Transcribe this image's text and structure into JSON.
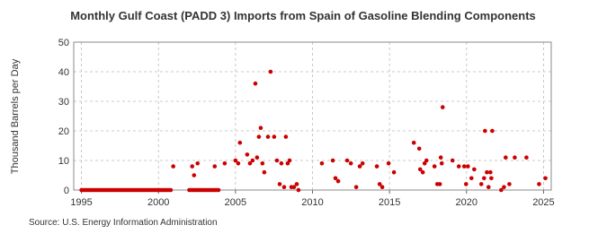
{
  "chart_data": {
    "type": "scatter",
    "title": "Monthly Gulf Coast (PADD 3) Imports from Spain of Gasoline Blending Components",
    "y_label": "Thousand Barrels per Day",
    "source": "Source: U.S. Energy Information Administration",
    "color": "#cc0000",
    "grid": true,
    "xlim": [
      1994.5,
      2025.5
    ],
    "xticks": [
      1995,
      2000,
      2005,
      2010,
      2015,
      2020,
      2025
    ],
    "ylim": [
      0,
      50
    ],
    "yticks": [
      0,
      10,
      20,
      30,
      40,
      50
    ],
    "x": [
      1995,
      1995.1,
      1995.2,
      1995.3,
      1995.4,
      1995.5,
      1995.6,
      1995.7,
      1995.8,
      1995.9,
      1996,
      1996.1,
      1996.2,
      1996.3,
      1996.4,
      1996.5,
      1996.6,
      1996.7,
      1996.8,
      1996.9,
      1997,
      1997.1,
      1997.2,
      1997.3,
      1997.4,
      1997.5,
      1997.6,
      1997.7,
      1997.8,
      1997.9,
      1998,
      1998.1,
      1998.2,
      1998.3,
      1998.4,
      1998.5,
      1998.6,
      1998.7,
      1998.8,
      1998.9,
      1999,
      1999.1,
      1999.2,
      1999.3,
      1999.4,
      1999.5,
      1999.6,
      1999.7,
      1999.8,
      1999.9,
      2000,
      2000.1,
      2000.2,
      2000.3,
      2000.4,
      2000.5,
      2000.6,
      2000.7,
      2000.8,
      2002,
      2002.1,
      2002.2,
      2002.3,
      2002.4,
      2002.5,
      2002.6,
      2002.7,
      2002.8,
      2002.9,
      2003,
      2003.1,
      2003.2,
      2003.3,
      2003.4,
      2003.5,
      2003.6,
      2003.7,
      2003.8,
      2003.9,
      2000.96,
      2002.19,
      2002.31,
      2002.54,
      2003.65,
      2004.3,
      2005.0,
      2005.18,
      2005.29,
      2005.76,
      2005.94,
      2006.11,
      2006.29,
      2006.4,
      2006.52,
      2006.64,
      2006.75,
      2006.87,
      2007.11,
      2007.28,
      2007.51,
      2007.69,
      2007.87,
      2007.98,
      2008.16,
      2008.27,
      2008.39,
      2008.51,
      2008.63,
      2008.8,
      2008.98,
      2009.09,
      2010.61,
      2011.32,
      2011.49,
      2011.67,
      2012.25,
      2012.49,
      2012.84,
      2013.07,
      2013.25,
      2014.18,
      2014.36,
      2014.53,
      2014.94,
      2015.29,
      2016.58,
      2016.93,
      2016.99,
      2017.16,
      2017.28,
      2017.4,
      2017.92,
      2018.1,
      2018.27,
      2018.33,
      2018.39,
      2018.45,
      2019.09,
      2019.5,
      2019.85,
      2019.97,
      2020.09,
      2020.32,
      2020.5,
      2020.96,
      2021.14,
      2021.2,
      2021.32,
      2021.43,
      2021.55,
      2021.61,
      2021.67,
      2022.25,
      2022.43,
      2022.54,
      2022.78,
      2023.13,
      2023.89,
      2024.71,
      2025.12
    ],
    "values": [
      0,
      0,
      0,
      0,
      0,
      0,
      0,
      0,
      0,
      0,
      0,
      0,
      0,
      0,
      0,
      0,
      0,
      0,
      0,
      0,
      0,
      0,
      0,
      0,
      0,
      0,
      0,
      0,
      0,
      0,
      0,
      0,
      0,
      0,
      0,
      0,
      0,
      0,
      0,
      0,
      0,
      0,
      0,
      0,
      0,
      0,
      0,
      0,
      0,
      0,
      0,
      0,
      0,
      0,
      0,
      0,
      0,
      0,
      0,
      0,
      0,
      0,
      0,
      0,
      0,
      0,
      0,
      0,
      0,
      0,
      0,
      0,
      0,
      0,
      0,
      0,
      0,
      0,
      0,
      8,
      8,
      5,
      9,
      8,
      9,
      10,
      9,
      16,
      12,
      9,
      10,
      36,
      11,
      18,
      21,
      9,
      6,
      18,
      40,
      18,
      10,
      2,
      9,
      1,
      18,
      9,
      10,
      1,
      1,
      2,
      0,
      9,
      10,
      4,
      3,
      10,
      9,
      1,
      8,
      9,
      8,
      2,
      1,
      9,
      6,
      16,
      14,
      7,
      6,
      9,
      10,
      8,
      2,
      2,
      11,
      9,
      28,
      10,
      8,
      8,
      2,
      8,
      4,
      7,
      2,
      4,
      20,
      6,
      1,
      6,
      4,
      20,
      0,
      1,
      11,
      2,
      11,
      11,
      2,
      4
    ]
  }
}
